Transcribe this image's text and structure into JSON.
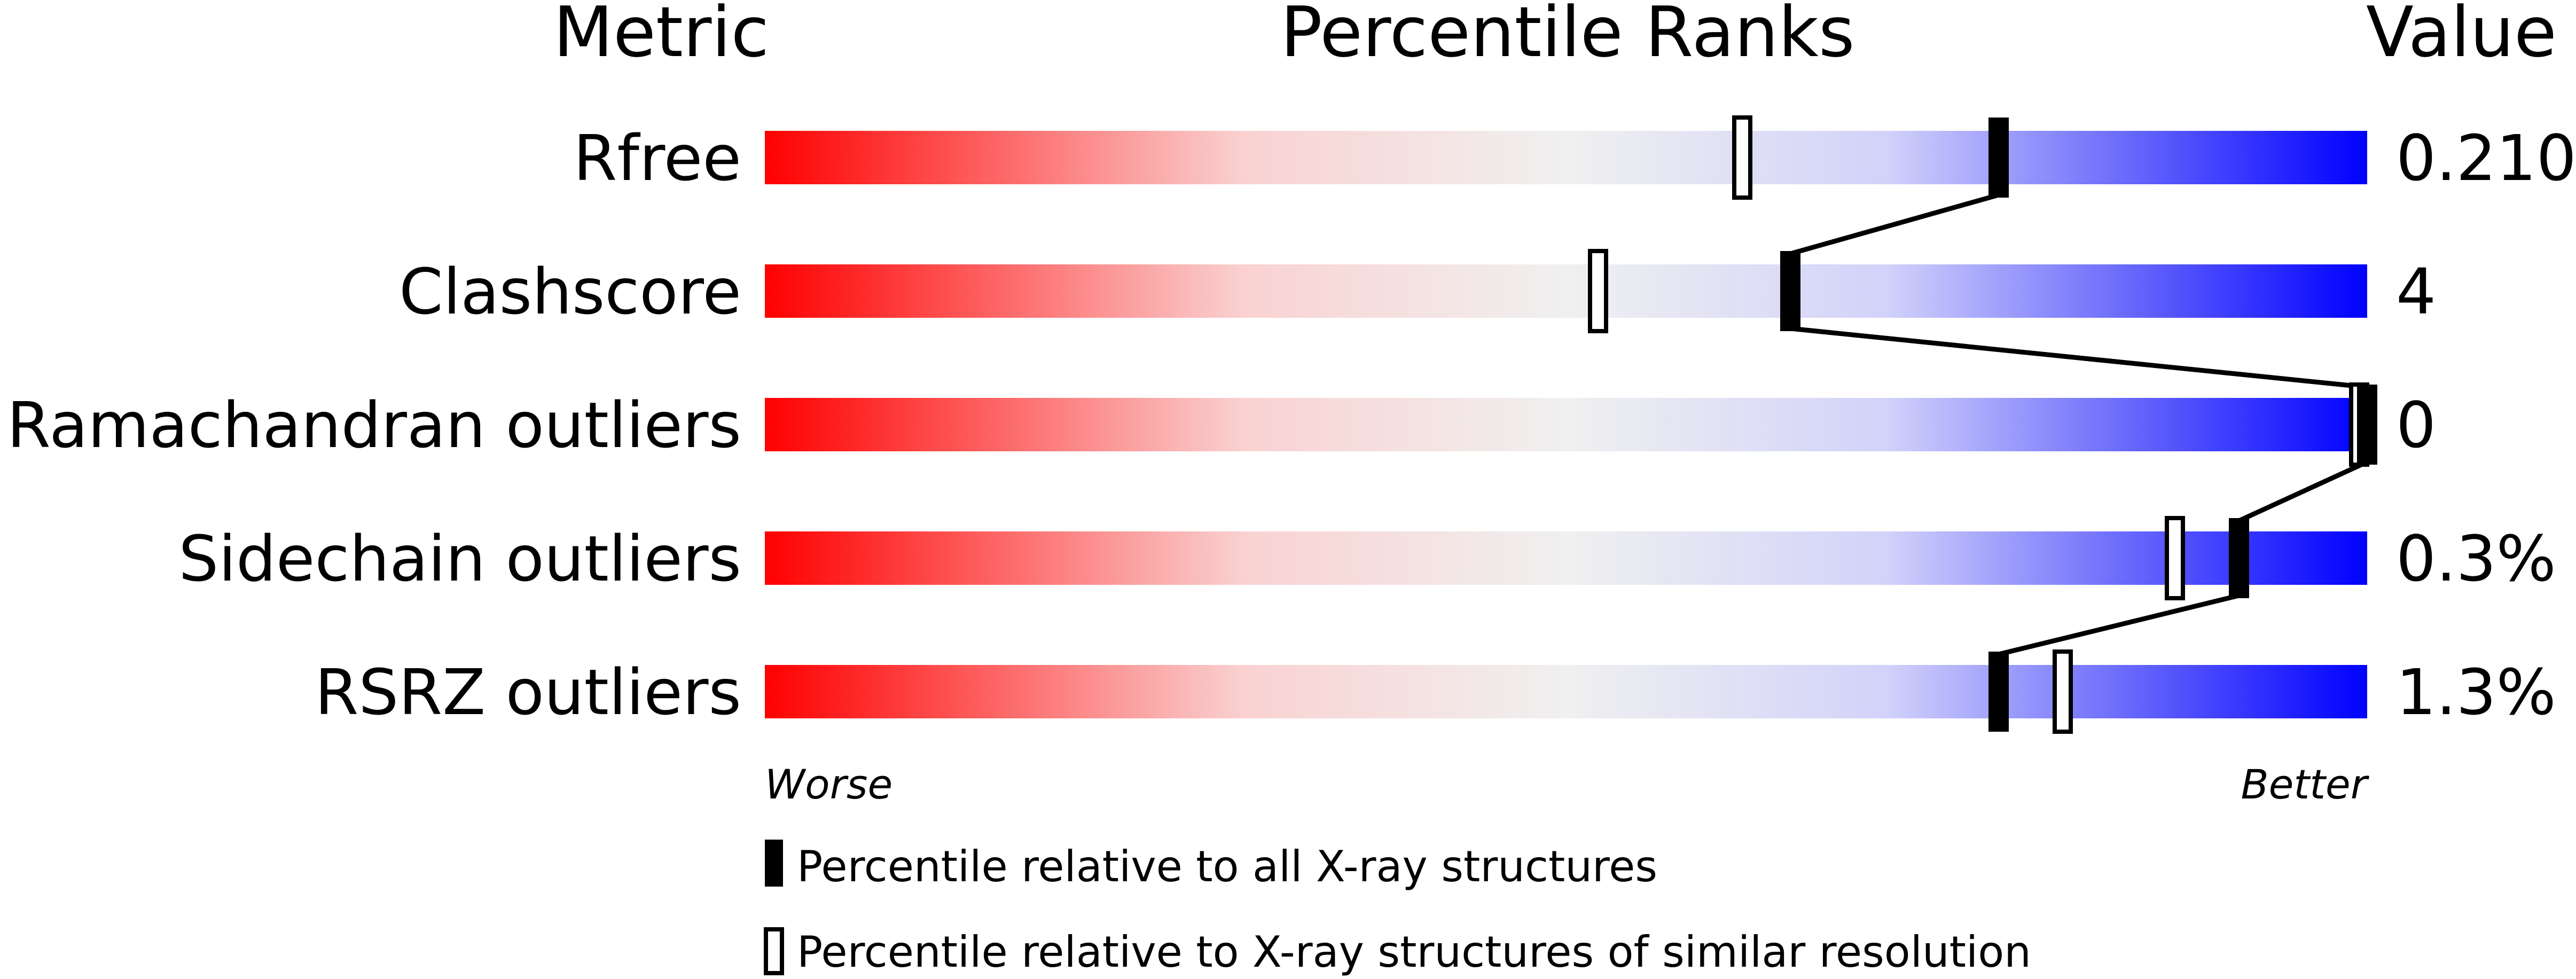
{
  "chart_data": {
    "type": "bar",
    "headers": {
      "metric": "Metric",
      "ranks": "Percentile Ranks",
      "value": "Value"
    },
    "xlim": [
      0,
      100
    ],
    "axis_notes": {
      "worse": "Worse",
      "better": "Better"
    },
    "colors": {
      "worse": "#ff0000",
      "middle": "#f0f0f0",
      "better_light": "#d2d2fa",
      "better": "#0000ff",
      "marker": "#000000"
    },
    "metrics": [
      {
        "label": "Rfree",
        "value": "0.210",
        "percentile_all": 77,
        "percentile_similar": 61
      },
      {
        "label": "Clashscore",
        "value": "4",
        "percentile_all": 64,
        "percentile_similar": 52
      },
      {
        "label": "Ramachandran outliers",
        "value": "0",
        "percentile_all": 100,
        "percentile_similar": 100
      },
      {
        "label": "Sidechain outliers",
        "value": "0.3%",
        "percentile_all": 92,
        "percentile_similar": 88
      },
      {
        "label": "RSRZ outliers",
        "value": "1.3%",
        "percentile_all": 77,
        "percentile_similar": 81
      }
    ],
    "legend": [
      {
        "kind": "filled",
        "label": "Percentile relative to all X-ray structures"
      },
      {
        "kind": "hollow",
        "label": "Percentile relative to X-ray structures of similar resolution"
      }
    ]
  }
}
